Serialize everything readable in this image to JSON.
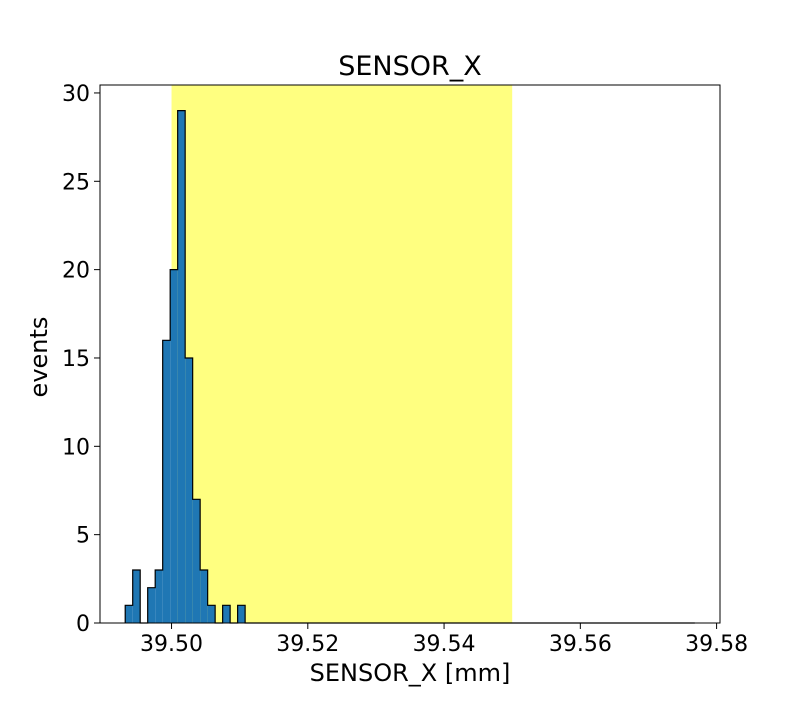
{
  "chart_data": {
    "type": "histogram",
    "title": "SENSOR_X",
    "xlabel": "SENSOR_X [mm]",
    "ylabel": "events",
    "xlim": [
      39.4895,
      39.5805
    ],
    "ylim": [
      0,
      30.45
    ],
    "xticks": [
      39.5,
      39.52,
      39.54,
      39.56,
      39.58
    ],
    "xtick_labels": [
      "39.50",
      "39.52",
      "39.54",
      "39.56",
      "39.58"
    ],
    "yticks": [
      0,
      5,
      10,
      15,
      20,
      25,
      30
    ],
    "ytick_labels": [
      "0",
      "5",
      "10",
      "15",
      "20",
      "25",
      "30"
    ],
    "grid": false,
    "highlight_band": {
      "x_start": 39.5,
      "x_end": 39.55,
      "color": "#ffff80"
    },
    "bar_color": "#1f77b4",
    "edge_color": "#000000",
    "bin_edges": [
      39.4932,
      39.4943,
      39.4954,
      39.4965,
      39.4976,
      39.4987,
      39.4998,
      39.5009,
      39.502,
      39.5031,
      39.5042,
      39.5053,
      39.5064,
      39.5075,
      39.5086,
      39.5097,
      39.5108,
      39.5119,
      39.513,
      39.5141,
      39.5152,
      39.5163,
      39.5174,
      39.5185,
      39.5196,
      39.5207,
      39.5218,
      39.5229,
      39.524,
      39.5251,
      39.5262,
      39.5273,
      39.5284,
      39.5295,
      39.5306,
      39.5317,
      39.5328,
      39.5339,
      39.535,
      39.5361,
      39.5372,
      39.5383,
      39.5394,
      39.5405,
      39.5416,
      39.5427,
      39.5438,
      39.5449,
      39.546,
      39.5471,
      39.5482,
      39.5493,
      39.5504,
      39.5515,
      39.5526,
      39.5537,
      39.5548,
      39.5559,
      39.557,
      39.5581,
      39.5592,
      39.5603,
      39.5614,
      39.5625,
      39.5636,
      39.5647,
      39.5658,
      39.5669,
      39.568,
      39.5691,
      39.5702,
      39.5713,
      39.5724,
      39.5735,
      39.5746,
      39.5757,
      39.5768
    ],
    "counts": [
      1,
      3,
      0,
      2,
      3,
      16,
      20,
      29,
      15,
      7,
      3,
      1,
      0,
      1,
      0,
      1,
      0,
      0,
      0,
      0,
      0,
      0,
      0,
      0,
      0,
      0,
      0,
      0,
      0,
      0,
      0,
      0,
      0,
      0,
      0,
      0,
      0,
      0,
      0,
      0,
      0,
      0,
      0,
      0,
      0,
      0,
      0,
      0,
      0,
      0,
      0,
      0,
      0,
      0,
      0,
      0,
      0,
      0,
      0,
      0,
      0,
      0,
      0,
      0,
      0,
      0,
      0,
      0,
      0,
      0,
      0,
      0,
      0,
      0,
      0,
      0
    ]
  }
}
